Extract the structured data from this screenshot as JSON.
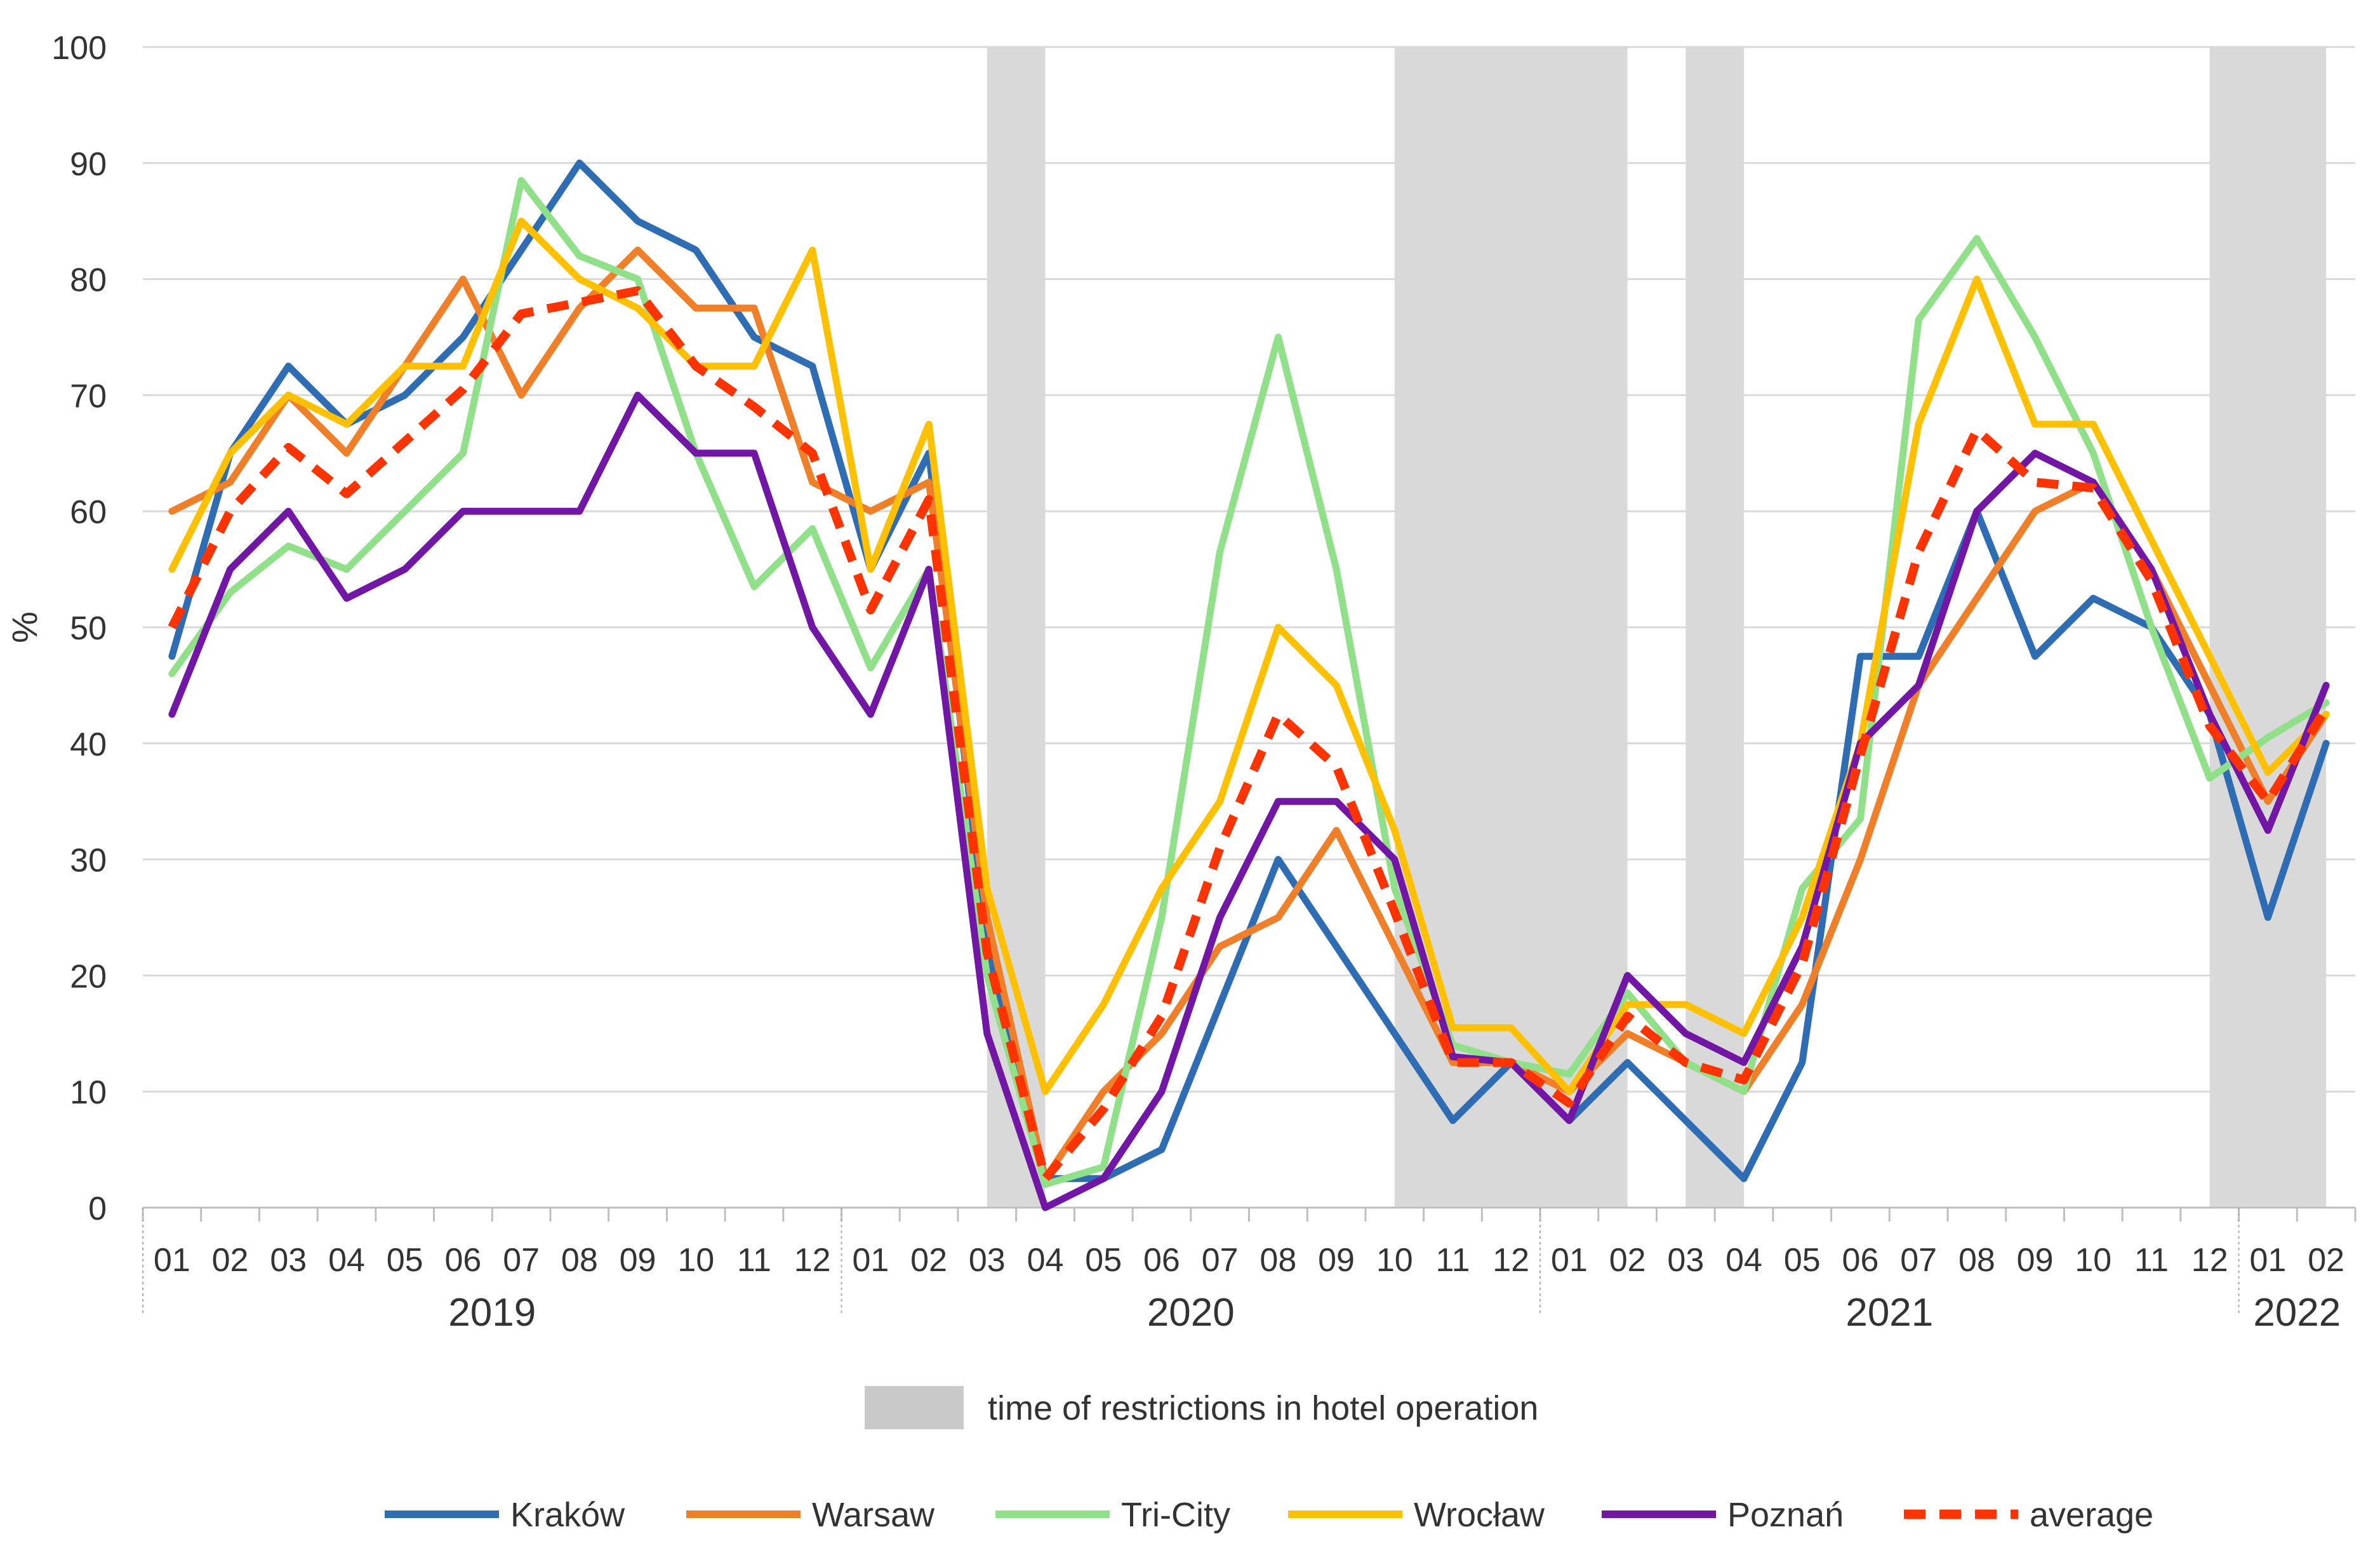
{
  "chart_data": {
    "type": "line",
    "title": "",
    "ylabel": "%",
    "xlabel": "",
    "ylim": [
      0,
      100
    ],
    "yticks": [
      "0",
      "10",
      "20",
      "30",
      "40",
      "50",
      "60",
      "70",
      "80",
      "90",
      "100"
    ],
    "months": [
      "01",
      "02",
      "03",
      "04",
      "05",
      "06",
      "07",
      "08",
      "09",
      "10",
      "11",
      "12",
      "01",
      "02",
      "03",
      "04",
      "05",
      "06",
      "07",
      "08",
      "09",
      "10",
      "11",
      "12",
      "01",
      "02",
      "03",
      "04",
      "05",
      "06",
      "07",
      "08",
      "09",
      "10",
      "11",
      "12",
      "01",
      "02"
    ],
    "years": [
      {
        "label": "2019",
        "start": 0,
        "end": 11
      },
      {
        "label": "2020",
        "start": 12,
        "end": 23
      },
      {
        "label": "2021",
        "start": 24,
        "end": 35
      },
      {
        "label": "2022",
        "start": 36,
        "end": 37
      }
    ],
    "restrictions": [
      {
        "from": "2020-03",
        "to": "2020-04"
      },
      {
        "from": "2020-10",
        "to": "2021-02"
      },
      {
        "from": "2021-03",
        "to": "2021-04"
      },
      {
        "from": "2021-12",
        "to": "2022-02"
      }
    ],
    "restrictions_legend": "time of restrictions in hotel operation",
    "series": [
      {
        "name": "Kraków",
        "color": "#2e6db4",
        "dashed": false,
        "values": [
          47.5,
          65,
          72.5,
          67.5,
          70,
          75,
          82.5,
          90,
          85,
          82.5,
          75,
          72.5,
          55,
          65,
          22.5,
          2.5,
          2.5,
          5,
          17.5,
          30,
          22.5,
          15,
          7.5,
          12.5,
          7.5,
          12.5,
          7.5,
          2.5,
          12.5,
          47.5,
          47.5,
          60,
          47.5,
          52.5,
          50,
          42.5,
          25,
          40
        ]
      },
      {
        "name": "Warsaw",
        "color": "#f07f2a",
        "dashed": false,
        "values": [
          60,
          62.5,
          70,
          65,
          72.5,
          80,
          70,
          77.5,
          82.5,
          77.5,
          77.5,
          62.5,
          60,
          62.5,
          25,
          2.5,
          10,
          15,
          22.5,
          25,
          32.5,
          22.5,
          12.5,
          12.5,
          10,
          15,
          12.5,
          10,
          17.5,
          30,
          45,
          52.5,
          60,
          62.5,
          55,
          45,
          35,
          42.5
        ]
      },
      {
        "name": "Tri-City",
        "color": "#90e08a",
        "dashed": false,
        "values": [
          46,
          53,
          57,
          55,
          60,
          65,
          88.5,
          82,
          80,
          65,
          53.5,
          58.5,
          46.5,
          55,
          20,
          2,
          3.5,
          25,
          56.5,
          75,
          55,
          27.5,
          14,
          12.5,
          11.5,
          18.5,
          12.5,
          10,
          27.5,
          33.5,
          76.5,
          83.5,
          75,
          65,
          50,
          37,
          40.5,
          43.5
        ]
      },
      {
        "name": "Wrocław",
        "color": "#ffc000",
        "dashed": false,
        "values": [
          55,
          65,
          70,
          67.5,
          72.5,
          72.5,
          85,
          80,
          77.5,
          72.5,
          72.5,
          82.5,
          55,
          67.5,
          27.5,
          10,
          17.5,
          27.5,
          35,
          50,
          45,
          32.5,
          15.5,
          15.5,
          10,
          17.5,
          17.5,
          15,
          25,
          40,
          67.5,
          80,
          67.5,
          67.5,
          57.5,
          47.5,
          37.5,
          42.5
        ]
      },
      {
        "name": "Poznań",
        "color": "#7216a5",
        "dashed": false,
        "values": [
          42.5,
          55,
          60,
          52.5,
          55,
          60,
          60,
          60,
          70,
          65,
          65,
          50,
          42.5,
          55,
          15,
          0,
          2.5,
          10,
          25,
          35,
          35,
          30,
          13,
          12.5,
          7.5,
          20,
          15,
          12.5,
          22.5,
          40,
          45,
          60,
          65,
          62.5,
          55,
          42.5,
          32.5,
          45
        ]
      },
      {
        "name": "average",
        "color": "#ff3300",
        "dashed": true,
        "values": [
          50,
          60,
          65.5,
          61.5,
          66,
          70.5,
          77,
          78,
          79,
          72.5,
          69,
          65,
          51.5,
          61,
          22,
          2.5,
          8.5,
          16.5,
          31,
          42.5,
          38,
          25.5,
          12.5,
          12.5,
          9,
          16.5,
          12.5,
          11,
          21,
          39,
          56.5,
          67,
          62.5,
          62,
          54,
          41.5,
          35,
          43
        ]
      }
    ]
  }
}
